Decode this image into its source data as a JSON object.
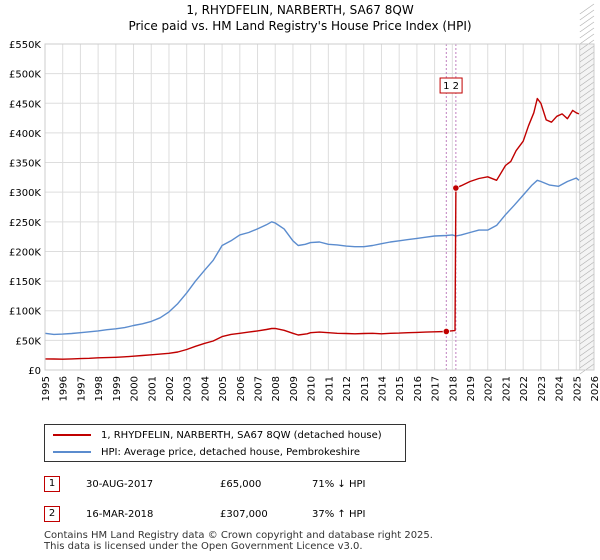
{
  "title": {
    "line1": "1, RHYDFELIN, NARBERTH, SA67 8QW",
    "line2": "Price paid vs. HM Land Registry's House Price Index (HPI)"
  },
  "chart_data": {
    "type": "line",
    "title": "1, RHYDFELIN, NARBERTH, SA67 8QW — Price paid vs. HM Land Registry's House Price Index (HPI)",
    "xlabel": "",
    "ylabel": "",
    "xlim": [
      1995,
      2026
    ],
    "ylim": [
      0,
      550000
    ],
    "x_ticks": [
      1995,
      1996,
      1997,
      1998,
      1999,
      2000,
      2001,
      2002,
      2003,
      2004,
      2005,
      2006,
      2007,
      2008,
      2009,
      2010,
      2011,
      2012,
      2013,
      2014,
      2015,
      2016,
      2017,
      2018,
      2019,
      2020,
      2021,
      2022,
      2023,
      2024,
      2025,
      2026
    ],
    "y_ticks": [
      {
        "value": 0,
        "label": "£0"
      },
      {
        "value": 50000,
        "label": "£50K"
      },
      {
        "value": 100000,
        "label": "£100K"
      },
      {
        "value": 150000,
        "label": "£150K"
      },
      {
        "value": 200000,
        "label": "£200K"
      },
      {
        "value": 250000,
        "label": "£250K"
      },
      {
        "value": 300000,
        "label": "£300K"
      },
      {
        "value": 350000,
        "label": "£350K"
      },
      {
        "value": 400000,
        "label": "£400K"
      },
      {
        "value": 450000,
        "label": "£450K"
      },
      {
        "value": 500000,
        "label": "£500K"
      },
      {
        "value": 550000,
        "label": "£550K"
      }
    ],
    "grid": true,
    "series": [
      {
        "name": "1, RHYDFELIN, NARBERTH, SA67 8QW (detached house)",
        "color": "#c00000",
        "points": [
          [
            1995.0,
            18800
          ],
          [
            1995.5,
            18600
          ],
          [
            1996.0,
            18300
          ],
          [
            1996.5,
            18700
          ],
          [
            1997.0,
            19200
          ],
          [
            1997.5,
            19700
          ],
          [
            1998.0,
            20500
          ],
          [
            1998.5,
            21000
          ],
          [
            1999.0,
            21500
          ],
          [
            1999.5,
            22200
          ],
          [
            2000.0,
            23300
          ],
          [
            2000.5,
            24500
          ],
          [
            2001.0,
            25700
          ],
          [
            2001.5,
            26800
          ],
          [
            2002.0,
            28100
          ],
          [
            2002.5,
            30400
          ],
          [
            2003.0,
            34600
          ],
          [
            2003.5,
            40000
          ],
          [
            2004.0,
            44800
          ],
          [
            2004.5,
            49000
          ],
          [
            2005.0,
            56300
          ],
          [
            2005.5,
            60000
          ],
          [
            2006.0,
            62000
          ],
          [
            2006.5,
            64000
          ],
          [
            2007.0,
            66000
          ],
          [
            2007.5,
            68300
          ],
          [
            2007.8,
            70000
          ],
          [
            2008.0,
            70200
          ],
          [
            2008.5,
            67000
          ],
          [
            2009.0,
            62000
          ],
          [
            2009.3,
            59000
          ],
          [
            2009.8,
            61000
          ],
          [
            2010.0,
            63000
          ],
          [
            2010.5,
            64000
          ],
          [
            2011.0,
            63000
          ],
          [
            2011.5,
            62000
          ],
          [
            2012.0,
            61500
          ],
          [
            2012.5,
            61000
          ],
          [
            2013.0,
            61500
          ],
          [
            2013.5,
            62000
          ],
          [
            2014.0,
            61000
          ],
          [
            2014.5,
            62000
          ],
          [
            2015.0,
            62300
          ],
          [
            2015.5,
            63000
          ],
          [
            2016.0,
            63500
          ],
          [
            2016.5,
            64000
          ],
          [
            2017.0,
            64500
          ],
          [
            2017.66,
            65000
          ],
          [
            2017.9,
            66000
          ],
          [
            2018.15,
            66500
          ],
          [
            2018.2,
            307000
          ],
          [
            2018.5,
            311000
          ],
          [
            2019.0,
            318000
          ],
          [
            2019.5,
            323000
          ],
          [
            2020.0,
            326000
          ],
          [
            2020.5,
            320000
          ],
          [
            2021.0,
            345000
          ],
          [
            2021.3,
            352000
          ],
          [
            2021.6,
            370000
          ],
          [
            2022.0,
            386000
          ],
          [
            2022.3,
            412000
          ],
          [
            2022.6,
            434000
          ],
          [
            2022.8,
            458000
          ],
          [
            2023.0,
            450000
          ],
          [
            2023.3,
            422000
          ],
          [
            2023.6,
            418000
          ],
          [
            2023.9,
            428000
          ],
          [
            2024.2,
            432000
          ],
          [
            2024.5,
            424000
          ],
          [
            2024.8,
            438000
          ],
          [
            2025.0,
            434000
          ],
          [
            2025.15,
            432000
          ]
        ]
      },
      {
        "name": "HPI: Average price, detached house, Pembrokeshire",
        "color": "#5b8cce",
        "points": [
          [
            1995.0,
            62000
          ],
          [
            1995.5,
            60000
          ],
          [
            1996.0,
            60500
          ],
          [
            1996.5,
            61500
          ],
          [
            1997.0,
            63000
          ],
          [
            1997.5,
            64500
          ],
          [
            1998.0,
            66000
          ],
          [
            1998.5,
            68000
          ],
          [
            1999.0,
            69500
          ],
          [
            1999.5,
            71500
          ],
          [
            2000.0,
            75000
          ],
          [
            2000.5,
            78000
          ],
          [
            2001.0,
            82000
          ],
          [
            2001.5,
            88000
          ],
          [
            2002.0,
            98000
          ],
          [
            2002.5,
            112000
          ],
          [
            2003.0,
            130000
          ],
          [
            2003.5,
            150000
          ],
          [
            2004.0,
            168000
          ],
          [
            2004.5,
            185000
          ],
          [
            2005.0,
            210000
          ],
          [
            2005.5,
            218000
          ],
          [
            2006.0,
            228000
          ],
          [
            2006.5,
            232000
          ],
          [
            2007.0,
            238000
          ],
          [
            2007.5,
            245000
          ],
          [
            2007.8,
            250000
          ],
          [
            2008.0,
            248000
          ],
          [
            2008.5,
            238000
          ],
          [
            2009.0,
            218000
          ],
          [
            2009.3,
            210000
          ],
          [
            2009.7,
            212000
          ],
          [
            2010.0,
            215000
          ],
          [
            2010.5,
            216000
          ],
          [
            2011.0,
            212000
          ],
          [
            2011.5,
            211000
          ],
          [
            2012.0,
            209000
          ],
          [
            2012.5,
            208000
          ],
          [
            2013.0,
            208000
          ],
          [
            2013.5,
            210000
          ],
          [
            2014.0,
            213000
          ],
          [
            2014.5,
            216000
          ],
          [
            2015.0,
            218000
          ],
          [
            2015.5,
            220000
          ],
          [
            2016.0,
            222000
          ],
          [
            2016.5,
            224000
          ],
          [
            2017.0,
            226000
          ],
          [
            2017.66,
            227000
          ],
          [
            2018.0,
            228000
          ],
          [
            2018.2,
            226000
          ],
          [
            2018.5,
            228000
          ],
          [
            2019.0,
            232000
          ],
          [
            2019.5,
            236000
          ],
          [
            2020.0,
            236000
          ],
          [
            2020.5,
            244000
          ],
          [
            2021.0,
            262000
          ],
          [
            2021.5,
            278000
          ],
          [
            2022.0,
            295000
          ],
          [
            2022.5,
            312000
          ],
          [
            2022.8,
            320000
          ],
          [
            2023.0,
            318000
          ],
          [
            2023.5,
            312000
          ],
          [
            2024.0,
            310000
          ],
          [
            2024.5,
            318000
          ],
          [
            2025.0,
            324000
          ],
          [
            2025.15,
            320000
          ]
        ]
      }
    ],
    "transactions": [
      {
        "id": "1",
        "date": "30-AUG-2017",
        "price": "£65,000",
        "hpi": "71% ↓ HPI",
        "x": 2017.66,
        "y": 65000
      },
      {
        "id": "2",
        "date": "16-MAR-2018",
        "price": "£307,000",
        "hpi": "37% ↑ HPI",
        "x": 2018.2,
        "y": 307000
      }
    ],
    "marker_label": "1 2",
    "future_hatch_from": 2025.2
  },
  "legend": {
    "property_label": "1, RHYDFELIN, NARBERTH, SA67 8QW (detached house)",
    "hpi_label": "HPI: Average price, detached house, Pembrokeshire",
    "property_color": "#c00000",
    "hpi_color": "#5b8cce"
  },
  "footer": {
    "line1": "Contains HM Land Registry data © Crown copyright and database right 2025.",
    "line2": "This data is licensed under the Open Government Licence v3.0."
  }
}
